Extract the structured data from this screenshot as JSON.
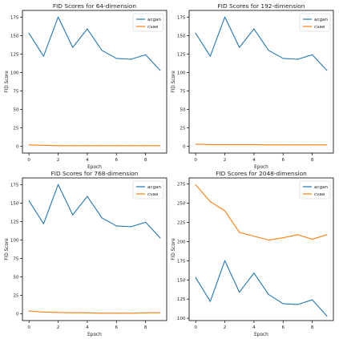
{
  "chart_data": [
    {
      "type": "line",
      "title": "FID Scores for 64-dimension",
      "xlabel": "Epoch",
      "ylabel": "FID Score",
      "x": [
        0,
        1,
        2,
        3,
        4,
        5,
        6,
        7,
        8,
        9
      ],
      "xticks": [
        0,
        2,
        4,
        6,
        8
      ],
      "xlim": [
        -0.45,
        9.45
      ],
      "yticks": [
        0,
        25,
        50,
        75,
        100,
        125,
        150,
        175
      ],
      "ylim": [
        -9,
        184
      ],
      "legend": "upper right",
      "series": [
        {
          "name": "acgan",
          "color": "#1f77b4",
          "values": [
            153,
            122,
            175,
            134,
            159,
            130,
            119,
            118,
            124,
            103
          ]
        },
        {
          "name": "cvae",
          "color": "#ff7f0e",
          "values": [
            2,
            1.5,
            1,
            1,
            1,
            1,
            1,
            1,
            1,
            1
          ]
        }
      ]
    },
    {
      "type": "line",
      "title": "FID Scores for 192-dimension",
      "xlabel": "Epoch",
      "ylabel": "FID Score",
      "x": [
        0,
        1,
        2,
        3,
        4,
        5,
        6,
        7,
        8,
        9
      ],
      "xticks": [
        0,
        2,
        4,
        6,
        8
      ],
      "xlim": [
        -0.45,
        9.45
      ],
      "yticks": [
        0,
        25,
        50,
        75,
        100,
        125,
        150,
        175
      ],
      "ylim": [
        -9,
        184
      ],
      "legend": "upper right",
      "series": [
        {
          "name": "acgan",
          "color": "#1f77b4",
          "values": [
            153,
            122,
            175,
            134,
            159,
            130,
            119,
            118,
            124,
            103
          ]
        },
        {
          "name": "cvae",
          "color": "#ff7f0e",
          "values": [
            3,
            2.5,
            2.5,
            2.5,
            2.5,
            2,
            2,
            2,
            2,
            2
          ]
        }
      ]
    },
    {
      "type": "line",
      "title": "FID Scores for 768-dimension",
      "xlabel": "Epoch",
      "ylabel": "FID Score",
      "x": [
        0,
        1,
        2,
        3,
        4,
        5,
        6,
        7,
        8,
        9
      ],
      "xticks": [
        0,
        2,
        4,
        6,
        8
      ],
      "xlim": [
        -0.45,
        9.45
      ],
      "yticks": [
        0,
        25,
        50,
        75,
        100,
        125,
        150,
        175
      ],
      "ylim": [
        -9,
        184
      ],
      "legend": "upper right",
      "series": [
        {
          "name": "acgan",
          "color": "#1f77b4",
          "values": [
            153,
            122,
            175,
            134,
            159,
            130,
            119,
            118,
            124,
            103
          ]
        },
        {
          "name": "cvae",
          "color": "#ff7f0e",
          "values": [
            4,
            2.5,
            2,
            1.5,
            1.5,
            1,
            1,
            1,
            1.5,
            1.5
          ]
        }
      ]
    },
    {
      "type": "line",
      "title": "FID Scores for 2048-dimension",
      "xlabel": "Epoch",
      "ylabel": "FID Score",
      "x": [
        0,
        1,
        2,
        3,
        4,
        5,
        6,
        7,
        8,
        9
      ],
      "xticks": [
        0,
        2,
        4,
        6,
        8
      ],
      "xlim": [
        -0.45,
        9.45
      ],
      "yticks": [
        100,
        125,
        150,
        175,
        200,
        225,
        250,
        275
      ],
      "ylim": [
        97,
        283
      ],
      "legend": "upper right",
      "series": [
        {
          "name": "acgan",
          "color": "#1f77b4",
          "values": [
            153,
            122,
            175,
            134,
            159,
            131,
            119,
            118,
            124,
            103
          ]
        },
        {
          "name": "cvae",
          "color": "#ff7f0e",
          "values": [
            274,
            252,
            240,
            212,
            207,
            202,
            205,
            209,
            203,
            209
          ]
        }
      ]
    }
  ]
}
